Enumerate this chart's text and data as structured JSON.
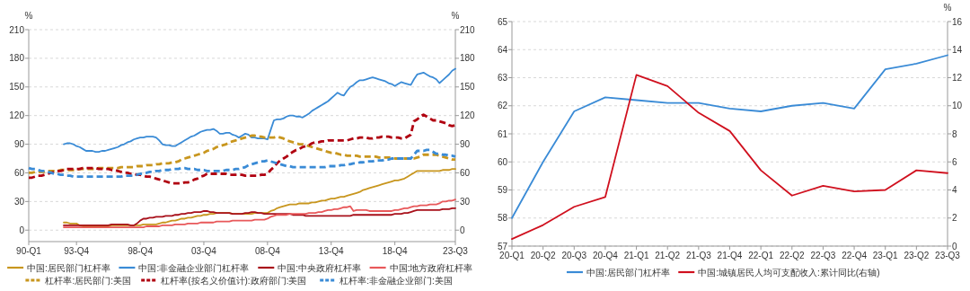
{
  "chart_data": [
    {
      "type": "line",
      "ylabel": "%",
      "y2label": "%",
      "categories": [
        "90-Q1",
        null,
        null,
        null,
        null,
        null,
        null,
        null,
        null,
        null,
        null,
        null,
        null,
        null,
        null,
        "93-Q4",
        null,
        null,
        null,
        null,
        null,
        null,
        null,
        null,
        null,
        null,
        null,
        null,
        null,
        null,
        null,
        null,
        null,
        null,
        null,
        "98-Q4",
        null,
        null,
        null,
        null,
        null,
        null,
        null,
        null,
        null,
        null,
        null,
        null,
        null,
        null,
        null,
        null,
        null,
        null,
        null,
        "03-Q4",
        null,
        null,
        null,
        null,
        null,
        null,
        null,
        null,
        null,
        null,
        null,
        null,
        null,
        null,
        null,
        null,
        null,
        null,
        null,
        "08-Q4",
        null,
        null,
        null,
        null,
        null,
        null,
        null,
        null,
        null,
        null,
        null,
        null,
        null,
        null,
        null,
        null,
        null,
        null,
        null,
        "13-Q4",
        null,
        null,
        null,
        null,
        null,
        null,
        null,
        null,
        null,
        null,
        null,
        null,
        null,
        null,
        null,
        null,
        null,
        null,
        null,
        "18-Q4",
        null,
        null,
        null,
        null,
        null,
        null,
        null,
        null,
        null,
        null,
        null,
        null,
        null,
        null,
        null,
        null,
        null,
        null,
        "23-Q3"
      ],
      "ylim": [
        -12,
        210
      ],
      "yticks": [
        0,
        30,
        60,
        90,
        120,
        150,
        180,
        210
      ],
      "y2lim": [
        -12,
        210
      ],
      "y2ticks": [
        0,
        30,
        60,
        90,
        120,
        150,
        180,
        210
      ],
      "grid": "y",
      "legend": "bottom",
      "series": [
        {
          "name": "中国:居民部门杠杆率",
          "color": "#c8961e",
          "values": [
            null,
            null,
            null,
            null,
            null,
            null,
            null,
            null,
            null,
            null,
            null,
            8,
            8,
            7,
            7,
            7,
            5,
            4,
            4,
            4,
            4,
            4,
            4,
            4,
            4,
            4,
            5,
            5,
            5,
            5,
            5,
            5,
            5,
            5,
            5,
            5,
            6,
            6,
            6,
            6,
            6,
            7,
            8,
            8,
            9,
            10,
            10,
            11,
            12,
            12,
            13,
            13,
            14,
            15,
            15,
            16,
            16,
            17,
            17,
            18,
            18,
            18,
            18,
            18,
            17,
            17,
            17,
            17,
            17,
            17,
            17,
            18,
            18,
            18,
            18,
            18,
            20,
            21,
            23,
            24,
            25,
            26,
            27,
            27,
            27,
            28,
            28,
            28,
            28,
            29,
            29,
            30,
            31,
            31,
            32,
            33,
            33,
            34,
            35,
            35,
            36,
            37,
            38,
            39,
            40,
            42,
            43,
            44,
            45,
            46,
            47,
            48,
            49,
            50,
            51,
            52,
            52,
            53,
            54,
            56,
            58,
            60,
            62,
            62,
            62,
            62,
            62,
            62,
            62,
            62,
            63,
            63,
            63,
            64,
            64
          ]
        },
        {
          "name": "中国:非金融企业部门杠杆率",
          "color": "#3a8bd6",
          "values": [
            null,
            null,
            null,
            null,
            null,
            null,
            null,
            null,
            null,
            null,
            null,
            90,
            91,
            91,
            90,
            88,
            87,
            85,
            83,
            83,
            83,
            82,
            82,
            83,
            83,
            84,
            85,
            86,
            87,
            89,
            90,
            92,
            93,
            95,
            96,
            97,
            97,
            98,
            98,
            98,
            97,
            94,
            90,
            89,
            89,
            88,
            88,
            90,
            92,
            94,
            96,
            98,
            99,
            101,
            103,
            104,
            105,
            105,
            106,
            104,
            101,
            101,
            102,
            102,
            100,
            99,
            97,
            99,
            101,
            100,
            97,
            97,
            96,
            96,
            96,
            95,
            105,
            115,
            116,
            116,
            117,
            119,
            120,
            120,
            119,
            119,
            118,
            120,
            122,
            125,
            127,
            129,
            131,
            133,
            135,
            138,
            141,
            144,
            142,
            141,
            146,
            150,
            152,
            155,
            157,
            157,
            158,
            159,
            160,
            159,
            158,
            157,
            156,
            154,
            153,
            151,
            153,
            155,
            154,
            153,
            152,
            158,
            163,
            164,
            165,
            163,
            161,
            160,
            158,
            154,
            157,
            160,
            163,
            167,
            169
          ]
        },
        {
          "name": "中国:中央政府杠杆率",
          "color": "#a8101a",
          "values": [
            null,
            null,
            null,
            null,
            null,
            null,
            null,
            null,
            null,
            null,
            null,
            5,
            5,
            5,
            5,
            5,
            5,
            5,
            5,
            5,
            5,
            5,
            5,
            5,
            5,
            5,
            6,
            6,
            6,
            6,
            6,
            6,
            5,
            5,
            7,
            10,
            12,
            12,
            13,
            13,
            14,
            14,
            14,
            15,
            15,
            15,
            16,
            16,
            17,
            17,
            18,
            18,
            19,
            19,
            19,
            20,
            20,
            19,
            19,
            18,
            18,
            18,
            18,
            18,
            17,
            17,
            17,
            17,
            18,
            18,
            19,
            19,
            18,
            18,
            17,
            17,
            17,
            17,
            17,
            17,
            17,
            17,
            17,
            16,
            16,
            16,
            16,
            15,
            15,
            15,
            15,
            15,
            15,
            15,
            15,
            15,
            15,
            15,
            15,
            15,
            15,
            15,
            16,
            16,
            16,
            16,
            16,
            16,
            16,
            16,
            16,
            16,
            16,
            16,
            16,
            17,
            17,
            17,
            18,
            18,
            19,
            20,
            21,
            21,
            21,
            21,
            21,
            21,
            21,
            21,
            22,
            22,
            22,
            23,
            23
          ]
        },
        {
          "name": "中国:地方政府杠杆率",
          "color": "#e8585a",
          "values": [
            null,
            null,
            null,
            null,
            null,
            null,
            null,
            null,
            null,
            null,
            null,
            3,
            3,
            3,
            3,
            3,
            3,
            3,
            3,
            3,
            3,
            3,
            3,
            3,
            3,
            3,
            3,
            3,
            3,
            3,
            3,
            3,
            3,
            3,
            3,
            3,
            3,
            4,
            4,
            4,
            4,
            4,
            5,
            5,
            5,
            5,
            6,
            6,
            6,
            6,
            7,
            7,
            7,
            7,
            8,
            8,
            8,
            8,
            8,
            9,
            9,
            9,
            9,
            9,
            10,
            10,
            10,
            10,
            10,
            10,
            10,
            11,
            11,
            11,
            11,
            12,
            14,
            15,
            16,
            16,
            16,
            16,
            17,
            17,
            17,
            17,
            17,
            17,
            18,
            18,
            18,
            19,
            19,
            20,
            21,
            21,
            22,
            22,
            23,
            24,
            24,
            25,
            20,
            21,
            21,
            21,
            21,
            20,
            20,
            20,
            20,
            20,
            20,
            20,
            20,
            21,
            21,
            22,
            23,
            23,
            24,
            25,
            25,
            26,
            26,
            26,
            27,
            27,
            27,
            28,
            30,
            30,
            31,
            31,
            32
          ]
        },
        {
          "name": "杠杆率:居民部门:美国",
          "color": "#c8961e",
          "line_style": "dashed",
          "values": [
            60,
            60,
            61,
            61,
            61,
            61,
            62,
            62,
            62,
            62,
            63,
            63,
            63,
            63,
            63,
            63,
            64,
            64,
            64,
            64,
            64,
            64,
            65,
            65,
            65,
            65,
            65,
            65,
            65,
            66,
            66,
            66,
            66,
            66,
            67,
            67,
            67,
            68,
            68,
            68,
            69,
            69,
            70,
            70,
            70,
            71,
            71,
            72,
            74,
            75,
            76,
            77,
            78,
            79,
            80,
            81,
            83,
            84,
            85,
            87,
            88,
            89,
            90,
            92,
            93,
            94,
            95,
            96,
            97,
            98,
            99,
            99,
            98,
            98,
            97,
            97,
            97,
            97,
            98,
            97,
            96,
            94,
            93,
            92,
            91,
            90,
            90,
            89,
            88,
            87,
            86,
            85,
            84,
            83,
            82,
            81,
            81,
            80,
            79,
            79,
            78,
            78,
            78,
            78,
            77,
            77,
            77,
            77,
            77,
            77,
            76,
            76,
            76,
            76,
            76,
            75,
            75,
            75,
            75,
            75,
            75,
            75,
            76,
            77,
            79,
            79,
            79,
            79,
            79,
            78,
            77,
            76,
            75,
            74,
            74
          ]
        },
        {
          "name": "杠杆率(按名义价值计):政府部门:美国",
          "color": "#b00010",
          "line_style": "dashed",
          "values": [
            55,
            55,
            56,
            57,
            57,
            58,
            59,
            60,
            61,
            62,
            62,
            63,
            64,
            64,
            64,
            64,
            64,
            65,
            65,
            65,
            65,
            65,
            64,
            64,
            64,
            64,
            63,
            63,
            62,
            61,
            60,
            60,
            59,
            59,
            58,
            58,
            57,
            56,
            56,
            55,
            54,
            53,
            52,
            51,
            50,
            49,
            49,
            49,
            49,
            50,
            50,
            51,
            53,
            54,
            56,
            57,
            59,
            59,
            59,
            59,
            59,
            59,
            59,
            58,
            58,
            58,
            58,
            58,
            57,
            57,
            57,
            57,
            57,
            58,
            58,
            59,
            63,
            66,
            70,
            73,
            75,
            77,
            80,
            82,
            84,
            85,
            87,
            88,
            89,
            91,
            92,
            92,
            93,
            93,
            94,
            94,
            94,
            94,
            94,
            94,
            94,
            95,
            96,
            96,
            97,
            97,
            97,
            96,
            96,
            97,
            97,
            98,
            98,
            98,
            97,
            97,
            97,
            96,
            96,
            98,
            100,
            114,
            116,
            119,
            121,
            119,
            117,
            115,
            115,
            114,
            113,
            112,
            110,
            109,
            110
          ]
        },
        {
          "name": "杠杆率:非金融企业部门:美国",
          "color": "#3a8bd6",
          "line_style": "dashed",
          "values": [
            65,
            64,
            64,
            63,
            62,
            62,
            61,
            60,
            59,
            59,
            58,
            58,
            57,
            57,
            56,
            56,
            56,
            56,
            56,
            56,
            56,
            56,
            56,
            56,
            56,
            56,
            56,
            56,
            56,
            56,
            57,
            57,
            57,
            57,
            58,
            59,
            59,
            60,
            61,
            61,
            62,
            62,
            63,
            63,
            63,
            64,
            64,
            64,
            65,
            65,
            64,
            64,
            64,
            63,
            63,
            63,
            62,
            62,
            62,
            62,
            62,
            62,
            63,
            63,
            63,
            64,
            64,
            65,
            66,
            68,
            69,
            70,
            71,
            72,
            72,
            73,
            72,
            71,
            70,
            69,
            68,
            67,
            67,
            66,
            66,
            66,
            66,
            66,
            66,
            66,
            66,
            66,
            66,
            66,
            67,
            67,
            67,
            67,
            68,
            68,
            69,
            69,
            70,
            70,
            71,
            71,
            72,
            72,
            72,
            73,
            73,
            73,
            74,
            74,
            75,
            75,
            75,
            75,
            75,
            75,
            75,
            79,
            83,
            83,
            83,
            84,
            84,
            82,
            80,
            80,
            79,
            79,
            78,
            78,
            77
          ]
        }
      ]
    },
    {
      "type": "line",
      "y2label": "%",
      "categories": [
        "20-Q1",
        "20-Q2",
        "20-Q3",
        "20-Q4",
        "21-Q1",
        "21-Q2",
        "21-Q3",
        "21-Q4",
        "22-Q1",
        "22-Q2",
        "22-Q3",
        "22-Q4",
        "23-Q1",
        "23-Q2",
        "23-Q3"
      ],
      "ylim": [
        57,
        65
      ],
      "yticks": [
        57,
        58,
        59,
        60,
        61,
        62,
        63,
        64,
        65
      ],
      "y2lim": [
        0,
        16
      ],
      "y2ticks": [
        0,
        2,
        4,
        6,
        8,
        10,
        12,
        14,
        16
      ],
      "grid": "y",
      "legend": "bottom",
      "series": [
        {
          "name": "中国:居民部门杠杆率",
          "color": "#3a8bd6",
          "values": [
            58.0,
            60.0,
            61.8,
            62.3,
            62.2,
            62.1,
            62.1,
            61.9,
            61.8,
            62.0,
            62.1,
            61.9,
            63.3,
            63.5,
            63.8
          ]
        },
        {
          "name": "中国:城镇居民人均可支配收入:累计同比(右轴)",
          "color": "#d0101e",
          "axis": "y2",
          "values": [
            0.5,
            1.5,
            2.8,
            3.5,
            12.2,
            11.4,
            9.5,
            8.2,
            5.4,
            3.6,
            4.3,
            3.9,
            4.0,
            5.4,
            5.2
          ]
        }
      ]
    }
  ]
}
